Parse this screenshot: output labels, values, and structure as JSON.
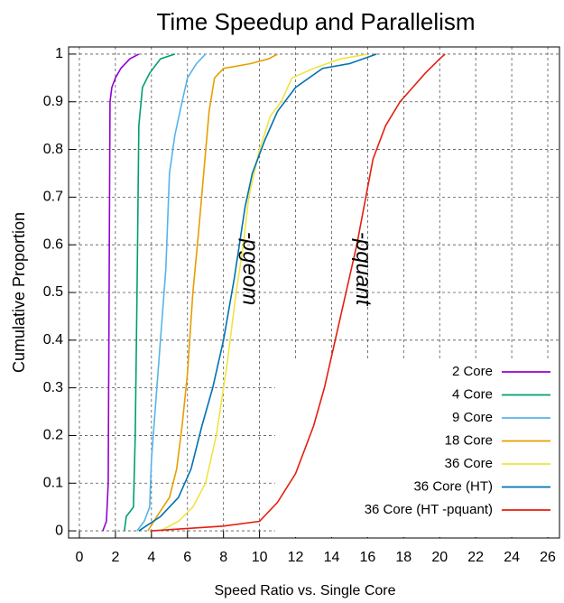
{
  "chart_data": {
    "type": "line",
    "title": "Time Speedup and Parallelism",
    "x_label": "Speed Ratio vs. Single Core",
    "y_label": "Cumulative Proportion",
    "xlim": [
      -0.6,
      26.65
    ],
    "ylim": [
      -0.015,
      1.015
    ],
    "xticks": [
      0,
      2,
      4,
      6,
      8,
      10,
      12,
      14,
      16,
      18,
      20,
      22,
      24,
      26
    ],
    "yticks": [
      0,
      0.1,
      0.2,
      0.3,
      0.4,
      0.5,
      0.6,
      0.7,
      0.8,
      0.9,
      1
    ],
    "grid": true,
    "legend": "bottom-right",
    "annotations": [
      {
        "text": "-pgeom",
        "x": 9.4,
        "y": 0.55
      },
      {
        "text": "-pquant",
        "x": 15.7,
        "y": 0.55
      }
    ],
    "series": [
      {
        "name": "2 Core",
        "color": "#9400d3",
        "x": [
          1.3,
          1.5,
          1.6,
          1.65,
          1.7,
          1.8,
          2.0,
          2.3,
          2.8,
          3.3
        ],
        "values": [
          0,
          0.02,
          0.1,
          0.5,
          0.9,
          0.93,
          0.95,
          0.97,
          0.99,
          1.0
        ]
      },
      {
        "name": "4 Core",
        "color": "#009e73",
        "x": [
          2.5,
          2.6,
          3.0,
          3.1,
          3.2,
          3.3,
          3.5,
          3.9,
          4.5,
          5.3
        ],
        "values": [
          0,
          0.03,
          0.05,
          0.2,
          0.5,
          0.85,
          0.93,
          0.96,
          0.99,
          1.0
        ]
      },
      {
        "name": "9 Core",
        "color": "#56b4e9",
        "x": [
          3.2,
          3.6,
          3.9,
          4.0,
          4.5,
          4.8,
          5.0,
          5.3,
          5.7,
          6.0,
          6.5,
          7.0
        ],
        "values": [
          0,
          0.02,
          0.05,
          0.15,
          0.4,
          0.55,
          0.75,
          0.83,
          0.9,
          0.95,
          0.98,
          1.0
        ]
      },
      {
        "name": "18 Core",
        "color": "#e69f00",
        "x": [
          3.8,
          4.3,
          5.0,
          5.4,
          5.7,
          6.0,
          6.3,
          6.6,
          6.9,
          7.2,
          7.5,
          8.0,
          9.5,
          10.5,
          11.0
        ],
        "values": [
          0,
          0.03,
          0.07,
          0.13,
          0.22,
          0.33,
          0.5,
          0.62,
          0.75,
          0.88,
          0.95,
          0.97,
          0.98,
          0.99,
          1.0
        ]
      },
      {
        "name": "36 Core",
        "color": "#f0e442",
        "x": [
          4.5,
          5.5,
          6.3,
          7.0,
          7.6,
          8.2,
          8.7,
          9.1,
          9.4,
          10.0,
          10.6,
          11.2,
          11.8,
          13.0,
          14.5,
          16.0
        ],
        "values": [
          0,
          0.02,
          0.05,
          0.1,
          0.2,
          0.35,
          0.5,
          0.6,
          0.7,
          0.8,
          0.87,
          0.9,
          0.95,
          0.97,
          0.99,
          1.0
        ]
      },
      {
        "name": "36 Core (HT)",
        "color": "#0072b2",
        "x": [
          3.3,
          4.5,
          5.5,
          6.2,
          6.8,
          7.4,
          8.0,
          8.6,
          9.2,
          9.6,
          10.3,
          11.0,
          12.0,
          13.5,
          15.0,
          16.5
        ],
        "values": [
          0,
          0.03,
          0.07,
          0.13,
          0.22,
          0.3,
          0.4,
          0.53,
          0.68,
          0.75,
          0.82,
          0.88,
          0.93,
          0.97,
          0.98,
          1.0
        ]
      },
      {
        "name": "36 Core (HT -pquant)",
        "color": "#e51e10",
        "x": [
          4.0,
          8.0,
          10.0,
          11.0,
          12.0,
          13.0,
          13.6,
          14.2,
          14.8,
          15.4,
          15.9,
          16.3,
          17.0,
          17.8,
          18.5,
          19.2,
          20.0,
          20.3
        ],
        "values": [
          0,
          0.01,
          0.02,
          0.06,
          0.12,
          0.22,
          0.3,
          0.4,
          0.5,
          0.6,
          0.7,
          0.78,
          0.85,
          0.9,
          0.93,
          0.96,
          0.99,
          1.0
        ]
      }
    ]
  }
}
